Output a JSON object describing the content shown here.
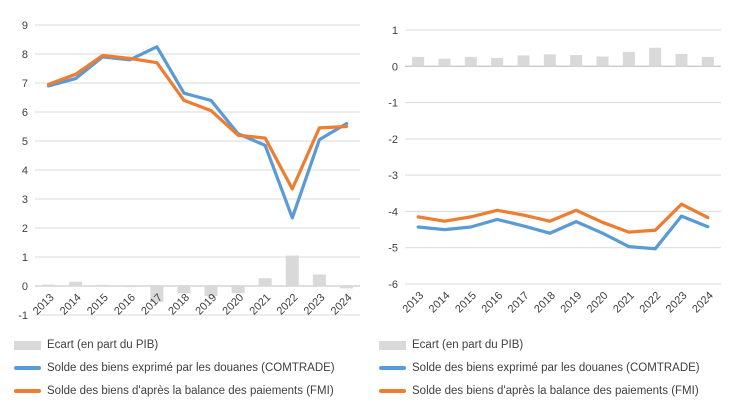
{
  "palette": {
    "blue": "#5B9BD5",
    "orange": "#ED7D31",
    "bar_gray": "#D9D9D9",
    "grid": "#D9D9D9",
    "axis_line": "#BFBFBF",
    "tick_text": "#404040"
  },
  "chart_data": [
    {
      "type": "combo-bar-line",
      "title": "",
      "categories": [
        "2013",
        "2014",
        "2015",
        "2016",
        "2017",
        "2018",
        "2019",
        "2020",
        "2021",
        "2022",
        "2023",
        "2024"
      ],
      "yticks": [
        9,
        8,
        7,
        6,
        5,
        4,
        3,
        2,
        1,
        0,
        -1
      ],
      "ylim": [
        -1,
        9
      ],
      "grid": true,
      "legend_position": "bottom-left",
      "series": [
        {
          "name": "Ecart (en part du PIB)",
          "type": "bar",
          "color": "#D9D9D9",
          "values": [
            0.05,
            0.15,
            0.04,
            -0.04,
            -0.55,
            -0.25,
            -0.35,
            -0.25,
            0.27,
            1.05,
            0.4,
            -0.08
          ]
        },
        {
          "name": "Solde des biens exprimé par les douanes (COMTRADE)",
          "type": "line",
          "color": "#5B9BD5",
          "values": [
            6.9,
            7.15,
            7.9,
            7.8,
            8.25,
            6.65,
            6.4,
            5.25,
            4.85,
            2.35,
            5.05,
            5.6
          ]
        },
        {
          "name": "Solde des biens d'après la balance des paiements (FMI)",
          "type": "line",
          "color": "#ED7D31",
          "values": [
            6.95,
            7.3,
            7.95,
            7.85,
            7.7,
            6.4,
            6.05,
            5.2,
            5.1,
            3.35,
            5.45,
            5.5
          ]
        }
      ]
    },
    {
      "type": "combo-bar-line",
      "title": "",
      "categories": [
        "2013",
        "2014",
        "2015",
        "2016",
        "2017",
        "2018",
        "2019",
        "2020",
        "2021",
        "2022",
        "2023",
        "2024"
      ],
      "yticks": [
        1,
        0,
        -1,
        -2,
        -3,
        -4,
        -5,
        -6
      ],
      "ylim": [
        -6,
        1
      ],
      "grid": true,
      "legend_position": "bottom-left",
      "series": [
        {
          "name": "Ecart (en part du PIB)",
          "type": "bar",
          "color": "#D9D9D9",
          "values": [
            0.26,
            0.21,
            0.26,
            0.23,
            0.3,
            0.33,
            0.31,
            0.27,
            0.4,
            0.51,
            0.34,
            0.26
          ]
        },
        {
          "name": "Solde des biens exprimé par les douanes (COMTRADE)",
          "type": "line",
          "color": "#5B9BD5",
          "values": [
            -4.43,
            -4.5,
            -4.43,
            -4.22,
            -4.4,
            -4.6,
            -4.28,
            -4.6,
            -4.97,
            -5.03,
            -4.13,
            -4.42
          ]
        },
        {
          "name": "Solde des biens d'après la balance des paiements (FMI)",
          "type": "line",
          "color": "#ED7D31",
          "values": [
            -4.15,
            -4.27,
            -4.15,
            -3.97,
            -4.1,
            -4.27,
            -3.97,
            -4.3,
            -4.57,
            -4.52,
            -3.8,
            -4.17
          ]
        }
      ]
    }
  ]
}
